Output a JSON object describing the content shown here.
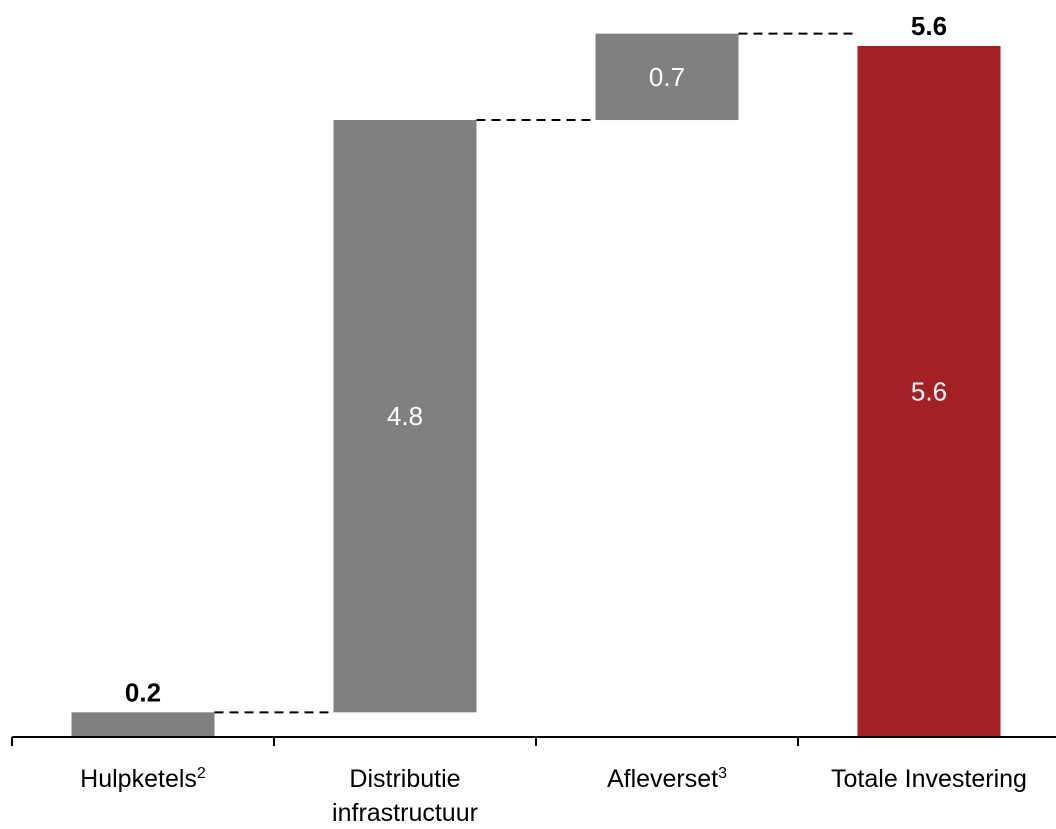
{
  "chart_data": {
    "type": "bar",
    "subtype": "waterfall",
    "title": "",
    "xlabel": "",
    "ylabel": "",
    "grid": false,
    "legend": "none",
    "categories": [
      {
        "lines": [
          "Hulpketels"
        ],
        "superscript": "2"
      },
      {
        "lines": [
          "Distributie",
          "infrastructuur"
        ],
        "superscript": ""
      },
      {
        "lines": [
          "Afleverset"
        ],
        "superscript": "3"
      },
      {
        "lines": [
          "Totale Investering"
        ],
        "superscript": ""
      }
    ],
    "values": [
      0.2,
      4.8,
      0.7,
      5.6
    ],
    "bar_labels": [
      "",
      "4.8",
      "0.7",
      "5.6"
    ],
    "top_labels": [
      "0.2",
      "",
      "",
      "5.6"
    ],
    "is_total": [
      false,
      false,
      false,
      true
    ],
    "colors": {
      "step": "#808080",
      "total": "#a32023",
      "connector": "#000000"
    },
    "ylim": [
      0,
      5.9
    ]
  }
}
